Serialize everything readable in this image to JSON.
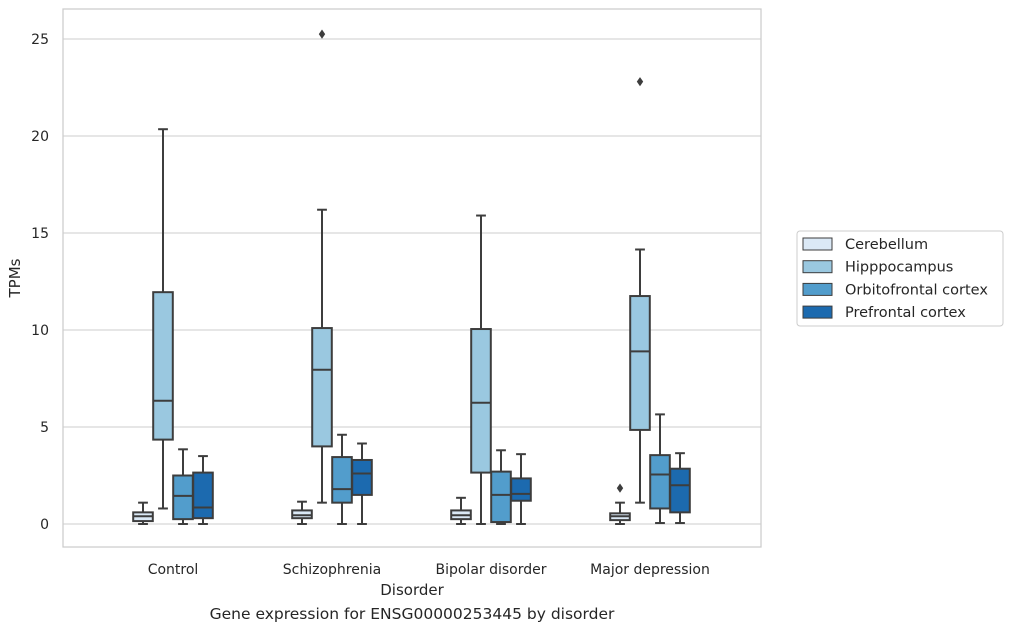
{
  "caption": "Gene expression for ENSG00000253445 by disorder",
  "chart_data": {
    "type": "boxplot",
    "xlabel": "Disorder",
    "ylabel": "TPMs",
    "ylim": [
      -1.2,
      26.5
    ],
    "yticks": [
      0,
      5,
      10,
      15,
      20,
      25
    ],
    "grid": "horizontal",
    "legend_position": "right",
    "categories": [
      "Control",
      "Schizophrenia",
      "Bipolar disorder",
      "Major depression"
    ],
    "series": [
      {
        "name": "Cerebellum",
        "color": "#dbe9f6",
        "boxes": [
          {
            "min": 0.0,
            "q1": 0.15,
            "median": 0.4,
            "q3": 0.6,
            "max": 1.1,
            "outliers": []
          },
          {
            "min": 0.0,
            "q1": 0.3,
            "median": 0.45,
            "q3": 0.7,
            "max": 1.15,
            "outliers": []
          },
          {
            "min": 0.0,
            "q1": 0.25,
            "median": 0.45,
            "q3": 0.7,
            "max": 1.35,
            "outliers": []
          },
          {
            "min": 0.0,
            "q1": 0.2,
            "median": 0.4,
            "q3": 0.55,
            "max": 1.1,
            "outliers": [
              1.85
            ]
          }
        ]
      },
      {
        "name": "Hipppocampus",
        "color": "#9ac8e0",
        "boxes": [
          {
            "min": 0.8,
            "q1": 4.35,
            "median": 6.35,
            "q3": 11.95,
            "max": 20.35,
            "outliers": []
          },
          {
            "min": 1.1,
            "q1": 4.0,
            "median": 7.95,
            "q3": 10.1,
            "max": 16.2,
            "outliers": [
              25.25
            ]
          },
          {
            "min": 0.0,
            "q1": 2.65,
            "median": 6.25,
            "q3": 10.05,
            "max": 15.9,
            "outliers": []
          },
          {
            "min": 1.1,
            "q1": 4.85,
            "median": 8.9,
            "q3": 11.75,
            "max": 14.15,
            "outliers": [
              22.8
            ]
          }
        ]
      },
      {
        "name": "Orbitofrontal cortex",
        "color": "#529dcc",
        "boxes": [
          {
            "min": 0.0,
            "q1": 0.25,
            "median": 1.45,
            "q3": 2.5,
            "max": 3.85,
            "outliers": []
          },
          {
            "min": 0.0,
            "q1": 1.1,
            "median": 1.8,
            "q3": 3.45,
            "max": 4.6,
            "outliers": []
          },
          {
            "min": 0.0,
            "q1": 0.1,
            "median": 1.5,
            "q3": 2.7,
            "max": 3.8,
            "outliers": []
          },
          {
            "min": 0.05,
            "q1": 0.8,
            "median": 2.55,
            "q3": 3.55,
            "max": 5.65,
            "outliers": []
          }
        ]
      },
      {
        "name": "Prefrontal cortex",
        "color": "#1c6aaf",
        "boxes": [
          {
            "min": 0.0,
            "q1": 0.3,
            "median": 0.85,
            "q3": 2.65,
            "max": 3.5,
            "outliers": []
          },
          {
            "min": 0.0,
            "q1": 1.5,
            "median": 2.6,
            "q3": 3.3,
            "max": 4.15,
            "outliers": []
          },
          {
            "min": 0.0,
            "q1": 1.2,
            "median": 1.55,
            "q3": 2.35,
            "max": 3.6,
            "outliers": []
          },
          {
            "min": 0.05,
            "q1": 0.6,
            "median": 2.0,
            "q3": 2.85,
            "max": 3.65,
            "outliers": []
          }
        ]
      }
    ]
  }
}
